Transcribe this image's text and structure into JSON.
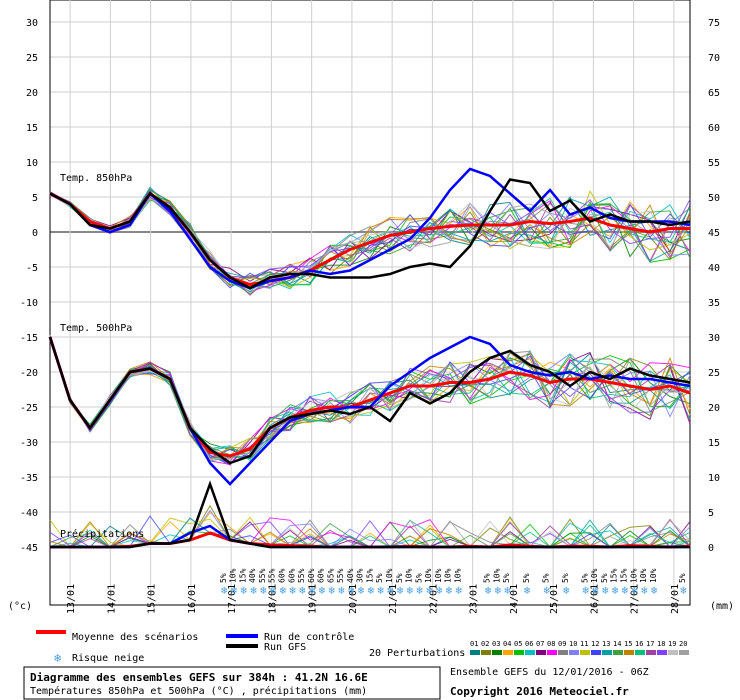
{
  "chart_data": {
    "type": "line",
    "title": "Diagramme des ensembles GEFS sur 384h : 41.2N 16.6E",
    "subtitle": "Températures 850hPa et 500hPa (°C) , précipitations (mm)",
    "source_label": "Ensemble GEFS du 12/01/2016 - 06Z",
    "copyright": "Copyright 2016 Meteociel.fr",
    "left_axis_unit": "(°c)",
    "right_axis_unit": "(mm)",
    "left_ticks": [
      30,
      25,
      20,
      15,
      10,
      5,
      0,
      -5,
      -10,
      -15,
      -20,
      -25,
      -30,
      -35,
      -40,
      -45
    ],
    "right_ticks": [
      75,
      70,
      65,
      60,
      55,
      50,
      45,
      40,
      35,
      30,
      25,
      20,
      15,
      10,
      5,
      0
    ],
    "ylim": [
      -45,
      30
    ],
    "x_dates": [
      "13/01",
      "14/01",
      "15/01",
      "16/01",
      "17/01",
      "18/01",
      "19/01",
      "20/01",
      "21/01",
      "22/01",
      "23/01",
      "24/01",
      "25/01",
      "26/01",
      "27/01",
      "28/01"
    ],
    "panel_labels": {
      "t850": "Temp. 850hPa",
      "t500": "Temp. 500hPa",
      "precip": "Précipitations"
    },
    "x_hours": [
      0,
      12,
      24,
      36,
      48,
      60,
      72,
      84,
      96,
      108,
      120,
      132,
      144,
      156,
      168,
      180,
      192,
      204,
      216,
      228,
      240,
      252,
      264,
      276,
      288,
      300,
      312,
      324,
      336,
      348,
      360,
      372,
      384
    ],
    "series": [
      {
        "name": "Moyenne des scénarios",
        "color": "#ff0000",
        "t850": [
          5.5,
          4,
          1.5,
          0.5,
          1.5,
          5.5,
          3.5,
          0,
          -4,
          -6.5,
          -7.5,
          -7,
          -6.5,
          -5.5,
          -4,
          -2.5,
          -1.5,
          -0.5,
          0,
          0.5,
          0.8,
          1,
          1,
          1,
          1.5,
          1.2,
          1.5,
          2,
          1,
          0.5,
          0,
          0.5,
          0.5
        ],
        "t500": [
          -15,
          -24,
          -28,
          -24,
          -20,
          -19.5,
          -21,
          -28,
          -31.5,
          -32,
          -31,
          -28,
          -26.5,
          -25.5,
          -25,
          -25,
          -24,
          -23,
          -22,
          -22,
          -21.5,
          -21.5,
          -21,
          -20,
          -20.5,
          -21.5,
          -21,
          -21,
          -21.5,
          -22,
          -22.5,
          -22,
          -23
        ],
        "precip": [
          0,
          0,
          0,
          0,
          0.1,
          0.5,
          0.5,
          1,
          2,
          1,
          0.5,
          0.3,
          0.2,
          0.1,
          0,
          0,
          0,
          0,
          0.1,
          0,
          0,
          0.1,
          0,
          0.3,
          0.1,
          0,
          0.1,
          0.1,
          0,
          0.2,
          0.1,
          0,
          0.1
        ]
      },
      {
        "name": "Run de contrôle",
        "color": "#0000ff",
        "t850": [
          5.5,
          4,
          1,
          0,
          1,
          5.5,
          3,
          -1,
          -5,
          -7,
          -8,
          -7,
          -6.5,
          -5.5,
          -6,
          -5.5,
          -4,
          -2.5,
          -1,
          2,
          6,
          9,
          8,
          5.5,
          3,
          6,
          2.5,
          3.5,
          2,
          1.5,
          1.5,
          1.5,
          1
        ],
        "t500": [
          -15,
          -24,
          -28,
          -24,
          -20,
          -19.5,
          -21,
          -28,
          -33,
          -36,
          -33,
          -30,
          -27,
          -26,
          -25.5,
          -25,
          -25,
          -22,
          -20,
          -18,
          -16.5,
          -15,
          -16,
          -19,
          -20,
          -20.5,
          -20,
          -21,
          -20.5,
          -21,
          -21,
          -21.5,
          -22
        ],
        "precip": [
          0,
          0,
          0,
          0,
          0,
          0.5,
          0.5,
          2,
          3,
          1,
          0.5,
          0,
          0,
          0,
          0,
          0,
          0,
          0,
          0,
          0,
          0,
          0,
          0,
          0,
          0,
          0,
          0,
          0,
          0,
          0,
          0,
          0,
          0
        ]
      },
      {
        "name": "Run GFS",
        "color": "#000000",
        "t850": [
          5.5,
          4,
          1,
          0.5,
          1.5,
          5.5,
          3.5,
          0,
          -4,
          -6.5,
          -8,
          -6.5,
          -6,
          -6,
          -6.5,
          -6.5,
          -6.5,
          -6,
          -5,
          -4.5,
          -5,
          -2,
          3,
          7.5,
          7,
          3,
          4.5,
          1.5,
          2.5,
          1.5,
          1.5,
          1,
          1.5
        ],
        "t500": [
          -15,
          -24,
          -28,
          -24,
          -20,
          -19.5,
          -21,
          -28,
          -31,
          -33,
          -32,
          -28,
          -26.5,
          -26,
          -25.5,
          -26,
          -25,
          -27,
          -23,
          -24.5,
          -23,
          -20,
          -18,
          -17,
          -19,
          -20,
          -22,
          -20,
          -21,
          -19.5,
          -20.5,
          -21,
          -21.5
        ],
        "precip": [
          0,
          0,
          0,
          0,
          0,
          0.5,
          0.5,
          1,
          9,
          1,
          0.5,
          0,
          0,
          0,
          0,
          0,
          0,
          0,
          0,
          0,
          0,
          0,
          0,
          0,
          0,
          0,
          0,
          0,
          0,
          0,
          0,
          0,
          0
        ]
      }
    ],
    "perturbation_count": 20,
    "perturbation_label": "20 Perturbations",
    "perturbation_ids": [
      "01",
      "02",
      "03",
      "04",
      "05",
      "06",
      "07",
      "08",
      "09",
      "10",
      "11",
      "12",
      "13",
      "14",
      "15",
      "16",
      "17",
      "18",
      "19",
      "20"
    ],
    "perturbation_colors": [
      "#008080",
      "#808000",
      "#008000",
      "#ffa500",
      "#00c000",
      "#00c0c0",
      "#800080",
      "#ff00ff",
      "#808080",
      "#8080ff",
      "#c0c000",
      "#4040ff",
      "#00a0a0",
      "#40a040",
      "#c08000",
      "#00c080",
      "#a040a0",
      "#8040ff",
      "#c0c0c0",
      "#a0a0a0"
    ],
    "snow_risk": {
      "label": "Risque neige",
      "steps": [
        18,
        19,
        20,
        21,
        22,
        23,
        24,
        25,
        26,
        27,
        28,
        29,
        30,
        31,
        32,
        33,
        34,
        35,
        36,
        37,
        38,
        39,
        40,
        41,
        42,
        45,
        46,
        47,
        49,
        51,
        53,
        55,
        56,
        57,
        58,
        59,
        60,
        61,
        62,
        65
      ],
      "percents": [
        "5%",
        "10%",
        "15%",
        "40%",
        "55%",
        "55%",
        "60%",
        "60%",
        "55%",
        "60%",
        "60%",
        "65%",
        "55%",
        "40%",
        "30%",
        "15%",
        "5%",
        "10%",
        "5%",
        "10%",
        "5%",
        "10%",
        "10%",
        "10%",
        "10%",
        "5%",
        "10%",
        "5%",
        "5%",
        "5%",
        "5%",
        "5%",
        "10%",
        "5%",
        "15%",
        "15%",
        "10%",
        "10%",
        "10%",
        "5%"
      ]
    },
    "legend": {
      "mean": "Moyenne des scénarios",
      "control": "Run de contrôle",
      "gfs": "Run GFS"
    },
    "grid": true
  }
}
